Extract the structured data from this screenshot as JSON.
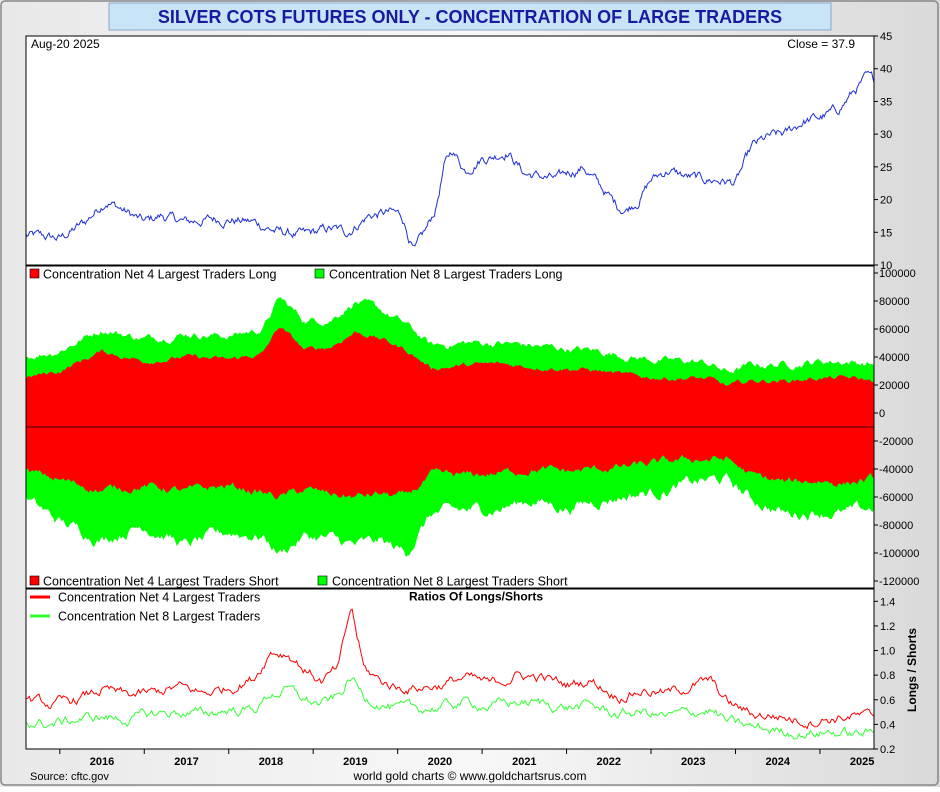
{
  "title": "SILVER COTS FUTURES ONLY - CONCENTRATION OF LARGE TRADERS",
  "footer": {
    "source": "Source: cftc.gov",
    "credit": "world gold charts © www.goldchartsrus.com"
  },
  "colors": {
    "price_line": "#1f2fd6",
    "long4_short4": "#ff0000",
    "long8_short8": "#00ff00",
    "ratio4": "#ff0000",
    "ratio8": "#33ff33",
    "title_bg": "#c8e4f7",
    "title_text": "#1a1aa0"
  },
  "x_axis": {
    "tick_labels": [
      "2016",
      "2017",
      "2018",
      "2019",
      "2020",
      "2021",
      "2022",
      "2023",
      "2024",
      "2025"
    ]
  },
  "chart_data": [
    {
      "type": "line",
      "name": "price",
      "date_label": "Aug-20  2025",
      "close_label": "Close = 37.9",
      "ylim": [
        10,
        45
      ],
      "yticks": [
        "45",
        "40",
        "35",
        "30",
        "25",
        "20",
        "15",
        "10"
      ],
      "x": [
        2015.6,
        2016.0,
        2016.3,
        2016.55,
        2016.8,
        2017.0,
        2017.2,
        2017.5,
        2017.8,
        2018.0,
        2018.3,
        2018.6,
        2018.9,
        2019.2,
        2019.4,
        2019.65,
        2019.9,
        2020.05,
        2020.2,
        2020.35,
        2020.45,
        2020.55,
        2020.65,
        2020.8,
        2021.0,
        2021.1,
        2021.3,
        2021.5,
        2021.7,
        2021.9,
        2022.0,
        2022.2,
        2022.4,
        2022.6,
        2022.7,
        2022.85,
        2023.0,
        2023.2,
        2023.4,
        2023.6,
        2023.8,
        2024.0,
        2024.2,
        2024.4,
        2024.6,
        2024.8,
        2025.0,
        2025.2,
        2025.4,
        2025.55,
        2025.64
      ],
      "values": [
        14.5,
        14.0,
        16.5,
        20.0,
        18.0,
        16.5,
        17.5,
        16.5,
        17.0,
        17.0,
        16.5,
        15.0,
        14.5,
        15.5,
        15.0,
        17.5,
        18.0,
        17.5,
        12.0,
        15.5,
        18.5,
        25.0,
        27.5,
        24.5,
        26.5,
        26.5,
        27.5,
        24.0,
        23.5,
        23.0,
        24.0,
        25.0,
        22.0,
        19.0,
        18.5,
        20.0,
        23.0,
        24.5,
        23.5,
        23.0,
        23.0,
        22.5,
        28.0,
        29.5,
        30.0,
        32.0,
        32.5,
        33.5,
        36.5,
        38.5,
        37.9
      ]
    },
    {
      "type": "area",
      "name": "positions",
      "legend_top": [
        "Concentration Net 4 Largest Traders Long",
        "Concentration Net 8 Largest Traders Long"
      ],
      "legend_bottom": [
        "Concentration Net 4 Largest Traders Short",
        "Concentration Net 8 Largest Traders Short"
      ],
      "ylim": [
        -125000,
        105000
      ],
      "yticks": [
        "100000",
        "80000",
        "60000",
        "40000",
        "20000",
        "0",
        "-20000",
        "-40000",
        "-60000",
        "-80000",
        "-100000",
        "-120000"
      ],
      "x": [
        2015.6,
        2016.0,
        2016.5,
        2017.0,
        2017.5,
        2018.0,
        2018.4,
        2018.6,
        2018.9,
        2019.2,
        2019.5,
        2019.8,
        2020.1,
        2020.4,
        2020.8,
        2021.2,
        2021.6,
        2022.0,
        2022.4,
        2022.8,
        2023.2,
        2023.5,
        2023.7,
        2023.9,
        2024.2,
        2024.6,
        2025.0,
        2025.3,
        2025.64
      ],
      "series": [
        {
          "name": "Net 4 Long",
          "values": [
            25000,
            30000,
            44000,
            37000,
            40000,
            38000,
            42000,
            62000,
            45000,
            47000,
            58000,
            53000,
            45000,
            32000,
            34000,
            35000,
            33000,
            32000,
            30000,
            26000,
            25000,
            25000,
            24000,
            19000,
            23000,
            23000,
            25000,
            25000,
            23000
          ]
        },
        {
          "name": "Net 8 Long",
          "values": [
            40000,
            45000,
            60000,
            53000,
            57000,
            55000,
            60000,
            82000,
            66000,
            67000,
            80000,
            73000,
            63000,
            48000,
            50000,
            50000,
            48000,
            46000,
            44000,
            40000,
            37000,
            37000,
            35000,
            29000,
            34000,
            35000,
            37000,
            37000,
            35000
          ]
        },
        {
          "name": "Net 4 Short",
          "values": [
            -42000,
            -48000,
            -55000,
            -52000,
            -56000,
            -52000,
            -57000,
            -60000,
            -55000,
            -58000,
            -60000,
            -58000,
            -60000,
            -45000,
            -45000,
            -43000,
            -40000,
            -42000,
            -40000,
            -38000,
            -35000,
            -33000,
            -33000,
            -33000,
            -45000,
            -50000,
            -48000,
            -50000,
            -47000
          ]
        },
        {
          "name": "Net 8 Short",
          "values": [
            -62000,
            -78000,
            -90000,
            -80000,
            -95000,
            -85000,
            -88000,
            -100000,
            -88000,
            -90000,
            -95000,
            -92000,
            -100000,
            -72000,
            -70000,
            -68000,
            -62000,
            -68000,
            -62000,
            -58000,
            -55000,
            -50000,
            -48000,
            -48000,
            -62000,
            -72000,
            -70000,
            -72000,
            -68000
          ]
        }
      ]
    },
    {
      "type": "line",
      "name": "ratios",
      "title": "Ratios Of Longs/Shorts",
      "ylabel": "Longs / Shorts",
      "legend": [
        "Concentration Net 4 Largest Traders",
        "Concentration Net 8 Largest Traders"
      ],
      "ylim": [
        0.2,
        1.5
      ],
      "yticks": [
        "1.4",
        "1.2",
        "1.0",
        "0.8",
        "0.6",
        "0.4",
        "0.2"
      ],
      "x": [
        2015.6,
        2015.9,
        2016.2,
        2016.5,
        2016.8,
        2017.1,
        2017.4,
        2017.7,
        2018.0,
        2018.3,
        2018.5,
        2018.7,
        2018.9,
        2019.1,
        2019.3,
        2019.45,
        2019.6,
        2019.8,
        2020.0,
        2020.2,
        2020.5,
        2020.8,
        2021.1,
        2021.4,
        2021.7,
        2022.0,
        2022.3,
        2022.6,
        2022.9,
        2023.2,
        2023.5,
        2023.7,
        2023.9,
        2024.2,
        2024.5,
        2024.8,
        2025.1,
        2025.4,
        2025.64
      ],
      "series": [
        {
          "name": "Net 4 Ratio",
          "values": [
            0.6,
            0.55,
            0.6,
            0.68,
            0.63,
            0.65,
            0.7,
            0.65,
            0.7,
            0.78,
            1.0,
            0.98,
            0.85,
            0.75,
            0.85,
            1.35,
            0.85,
            0.75,
            0.7,
            0.7,
            0.72,
            0.78,
            0.72,
            0.8,
            0.78,
            0.72,
            0.76,
            0.63,
            0.68,
            0.65,
            0.72,
            0.75,
            0.58,
            0.48,
            0.47,
            0.43,
            0.45,
            0.47,
            0.45
          ]
        },
        {
          "name": "Net 8 Ratio",
          "values": [
            0.42,
            0.4,
            0.44,
            0.46,
            0.44,
            0.48,
            0.5,
            0.48,
            0.52,
            0.52,
            0.65,
            0.68,
            0.6,
            0.56,
            0.62,
            0.78,
            0.62,
            0.58,
            0.52,
            0.52,
            0.54,
            0.58,
            0.55,
            0.58,
            0.57,
            0.54,
            0.55,
            0.48,
            0.5,
            0.46,
            0.5,
            0.52,
            0.42,
            0.37,
            0.35,
            0.33,
            0.34,
            0.32,
            0.33
          ]
        }
      ]
    }
  ]
}
